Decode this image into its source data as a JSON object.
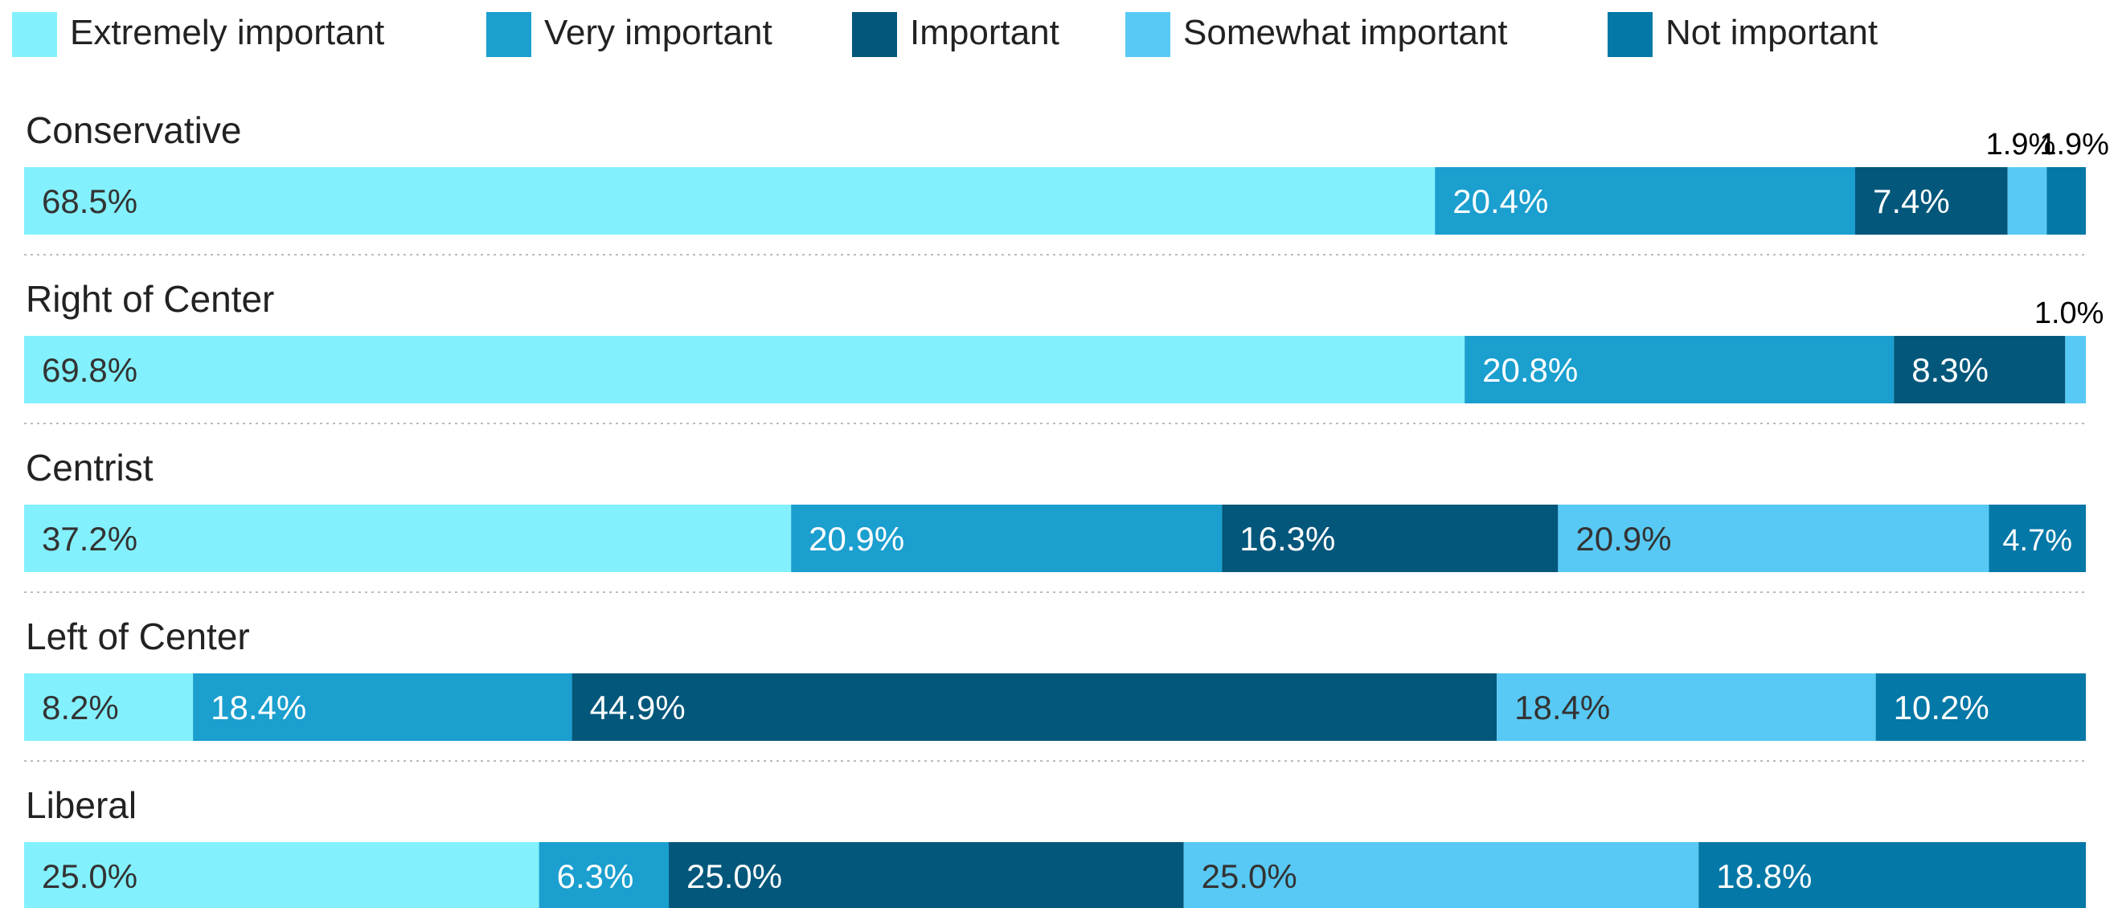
{
  "chart_data": {
    "type": "bar",
    "orientation": "horizontal-stacked-100",
    "title": "",
    "legend_position": "top",
    "series": [
      {
        "name": "Extremely important",
        "color": "#83f1fd"
      },
      {
        "name": "Very important",
        "color": "#1a9fcf"
      },
      {
        "name": "Important",
        "color": "#02577b"
      },
      {
        "name": "Somewhat important",
        "color": "#58c9f4"
      },
      {
        "name": "Not important",
        "color": "#0478a7"
      }
    ],
    "categories": [
      "Conservative",
      "Right of Center",
      "Centrist",
      "Left of Center",
      "Liberal"
    ],
    "values": [
      [
        68.5,
        20.4,
        7.4,
        1.9,
        1.9
      ],
      [
        69.8,
        20.8,
        8.3,
        1.0,
        0
      ],
      [
        37.2,
        20.9,
        16.3,
        20.9,
        4.7
      ],
      [
        8.2,
        18.4,
        44.9,
        18.4,
        10.2
      ],
      [
        25.0,
        6.3,
        25.0,
        25.0,
        18.8
      ]
    ],
    "labels": [
      [
        "68.5%",
        "20.4%",
        "7.4%",
        "1.9%",
        "1.9%"
      ],
      [
        "69.8%",
        "20.8%",
        "8.3%",
        "1.0%",
        ""
      ],
      [
        "37.2%",
        "20.9%",
        "16.3%",
        "20.9%",
        "4.7%"
      ],
      [
        "8.2%",
        "18.4%",
        "44.9%",
        "18.4%",
        "10.2%"
      ],
      [
        "25.0%",
        "6.3%",
        "25.0%",
        "25.0%",
        "18.8%"
      ]
    ]
  }
}
